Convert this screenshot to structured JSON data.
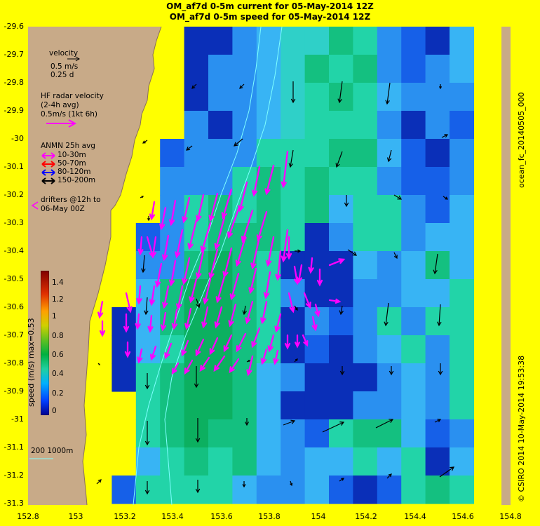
{
  "titles": {
    "line1": "OM_af7d 0-5m current for 05-May-2014 12Z",
    "line2": "OM_af7d 0-5m speed for 05-May-2014 12Z"
  },
  "axes": {
    "y_ticks": [
      "-29.6",
      "-29.7",
      "-29.8",
      "-29.9",
      "-30",
      "-30.1",
      "-30.2",
      "-30.3",
      "-30.4",
      "-30.5",
      "-30.6",
      "-30.7",
      "-30.8",
      "-30.9",
      "-31",
      "-31.1",
      "-31.2",
      "-31.3"
    ],
    "x_ticks": [
      "152.8",
      "153",
      "153.2",
      "153.4",
      "153.6",
      "153.8",
      "154",
      "154.2",
      "154.4",
      "154.6",
      "154.8"
    ],
    "lon_range": [
      152.8,
      154.8
    ],
    "lat_range": [
      -31.3,
      -29.6
    ]
  },
  "legend": {
    "velocity_label": "velocity",
    "velocity_scale": "0.5 m/s",
    "velocity_time": "0.25 d",
    "hf_title": "HF radar velocity",
    "hf_avg": "(2-4h avg)",
    "hf_scale": "0.5m/s (1kt 6h)",
    "anmn_title": "ANMN 25h avg",
    "anmn_items": [
      {
        "label": "10-30m",
        "color": "#ff00ff"
      },
      {
        "label": "50-70m",
        "color": "#ff0000"
      },
      {
        "label": "80-120m",
        "color": "#0000ff"
      },
      {
        "label": "150-200m",
        "color": "#000000"
      }
    ],
    "drifters_line1": "drifters @12h to",
    "drifters_line2": "06-May 00Z",
    "scale_bar": "200  1000m"
  },
  "colorbar": {
    "label": "speed (m/s)  max=0.53",
    "ticks": [
      "1.4",
      "1.2",
      "1",
      "0.8",
      "0.6",
      "0.4",
      "0.2",
      "0"
    ]
  },
  "side_labels": {
    "run": "ocean_fc_20140505_000",
    "stamp": "© CSIRO 2014  10-May-2014 19:53:38"
  },
  "colors": {
    "background": "#ffff00",
    "land": "#c8aa88",
    "isobath": "#7fffff",
    "hf_radar": "#ff00ff",
    "model_arrows": "#000000"
  }
}
